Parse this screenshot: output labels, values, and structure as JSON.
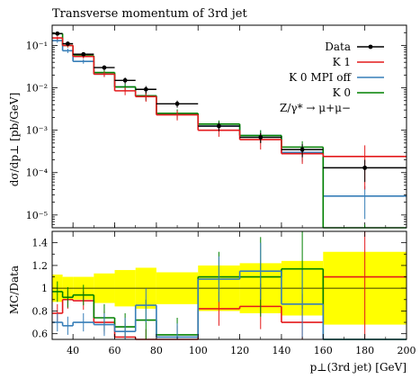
{
  "chart_data": [
    {
      "type": "line",
      "panel": "main",
      "title": "Transverse momentum of 3rd jet",
      "ylabel": "dσ/dp⊥ [pb/GeV]",
      "yscale": "log",
      "xlim": [
        30,
        200
      ],
      "ylim": [
        5e-06,
        0.3
      ],
      "ytick_labels": [
        "10⁻¹",
        "10⁻²",
        "10⁻³",
        "10⁻⁴",
        "10⁻⁵"
      ],
      "ytick_values": [
        0.1,
        0.01,
        0.001,
        0.0001,
        1e-05
      ],
      "bin_edges": [
        30,
        35,
        40,
        50,
        60,
        70,
        80,
        100,
        120,
        140,
        160,
        200
      ],
      "legend_position": "top-right",
      "legend_extra": "Z/γ* → μ+μ−",
      "series": [
        {
          "name": "Data",
          "color": "#000000",
          "style": "points",
          "values": [
            0.19,
            0.11,
            0.062,
            0.03,
            0.015,
            0.0092,
            0.0042,
            0.00125,
            0.00068,
            0.00035,
            0.00013
          ],
          "errors": [
            0.02,
            0.012,
            0.007,
            0.004,
            0.0025,
            0.0018,
            0.0008,
            0.0003,
            0.00018,
            0.00012,
            7e-05
          ]
        },
        {
          "name": "K 1",
          "color": "#e41a1c",
          "style": "hist",
          "values": [
            0.15,
            0.1,
            0.055,
            0.021,
            0.0085,
            0.0062,
            0.0023,
            0.001,
            0.0006,
            0.00028,
            0.00024
          ],
          "errors": [
            0.015,
            0.01,
            0.006,
            0.003,
            0.0018,
            0.0015,
            0.0006,
            0.0003,
            0.00025,
            0.00012,
            0.0002
          ]
        },
        {
          "name": "K 0 MPI off",
          "color": "#377eb8",
          "style": "hist",
          "values": [
            0.13,
            0.075,
            0.042,
            0.021,
            0.0105,
            0.0065,
            0.0024,
            0.00125,
            0.00075,
            0.0003,
            2.8e-05
          ],
          "errors": [
            0.015,
            0.009,
            0.005,
            0.003,
            0.002,
            0.0015,
            0.0006,
            0.0003,
            0.00025,
            0.00012,
            2e-05
          ]
        },
        {
          "name": "K 0",
          "color": "#008000",
          "style": "hist",
          "values": [
            0.19,
            0.1,
            0.057,
            0.023,
            0.0105,
            0.0065,
            0.0025,
            0.0014,
            0.00075,
            0.0004,
            3e-06
          ],
          "errors": [
            0.02,
            0.011,
            0.006,
            0.003,
            0.002,
            0.0015,
            0.0006,
            0.0003,
            0.00025,
            0.00015,
            3e-06
          ]
        }
      ]
    },
    {
      "type": "line",
      "panel": "ratio",
      "ylabel": "MC/Data",
      "xlabel": "p⊥(3rd jet) [GeV]",
      "xlim": [
        30,
        200
      ],
      "ylim": [
        0.55,
        1.5
      ],
      "ytick_labels": [
        "0.6",
        "0.8",
        "1",
        "1.2",
        "1.4"
      ],
      "ytick_values": [
        0.6,
        0.8,
        1.0,
        1.2,
        1.4
      ],
      "xtick_labels": [
        "40",
        "60",
        "80",
        "100",
        "120",
        "140",
        "160",
        "180",
        "200"
      ],
      "xtick_values": [
        40,
        60,
        80,
        100,
        120,
        140,
        160,
        180,
        200
      ],
      "bin_edges": [
        30,
        35,
        40,
        50,
        60,
        70,
        80,
        100,
        120,
        140,
        160,
        200
      ],
      "band_color": "#ffff00",
      "data_band": {
        "lo": [
          0.88,
          0.9,
          0.9,
          0.87,
          0.84,
          0.82,
          0.86,
          0.8,
          0.78,
          0.76,
          0.68
        ],
        "hi": [
          1.12,
          1.1,
          1.1,
          1.13,
          1.16,
          1.18,
          1.14,
          1.2,
          1.22,
          1.24,
          1.32
        ]
      },
      "series": [
        {
          "name": "K 1",
          "color": "#e41a1c",
          "values": [
            0.78,
            0.9,
            0.89,
            0.7,
            0.57,
            0.52,
            0.55,
            0.82,
            0.84,
            0.7,
            1.1
          ],
          "errors": [
            0.08,
            0.08,
            0.08,
            0.1,
            0.12,
            0.12,
            0.12,
            0.15,
            0.2,
            0.25,
            0.6
          ]
        },
        {
          "name": "K 0 MPI off",
          "color": "#377eb8",
          "values": [
            0.7,
            0.67,
            0.7,
            0.68,
            0.62,
            0.85,
            0.57,
            1.08,
            1.15,
            0.86,
            0.22
          ],
          "errors": [
            0.08,
            0.08,
            0.08,
            0.1,
            0.12,
            0.15,
            0.12,
            0.2,
            0.25,
            0.3,
            0.15
          ]
        },
        {
          "name": "K 0",
          "color": "#008000",
          "values": [
            0.97,
            0.92,
            0.94,
            0.74,
            0.66,
            0.72,
            0.59,
            1.1,
            1.1,
            1.17,
            0.02
          ],
          "errors": [
            0.09,
            0.09,
            0.09,
            0.12,
            0.12,
            0.18,
            0.15,
            0.22,
            0.35,
            0.35,
            0.05
          ]
        }
      ]
    }
  ]
}
